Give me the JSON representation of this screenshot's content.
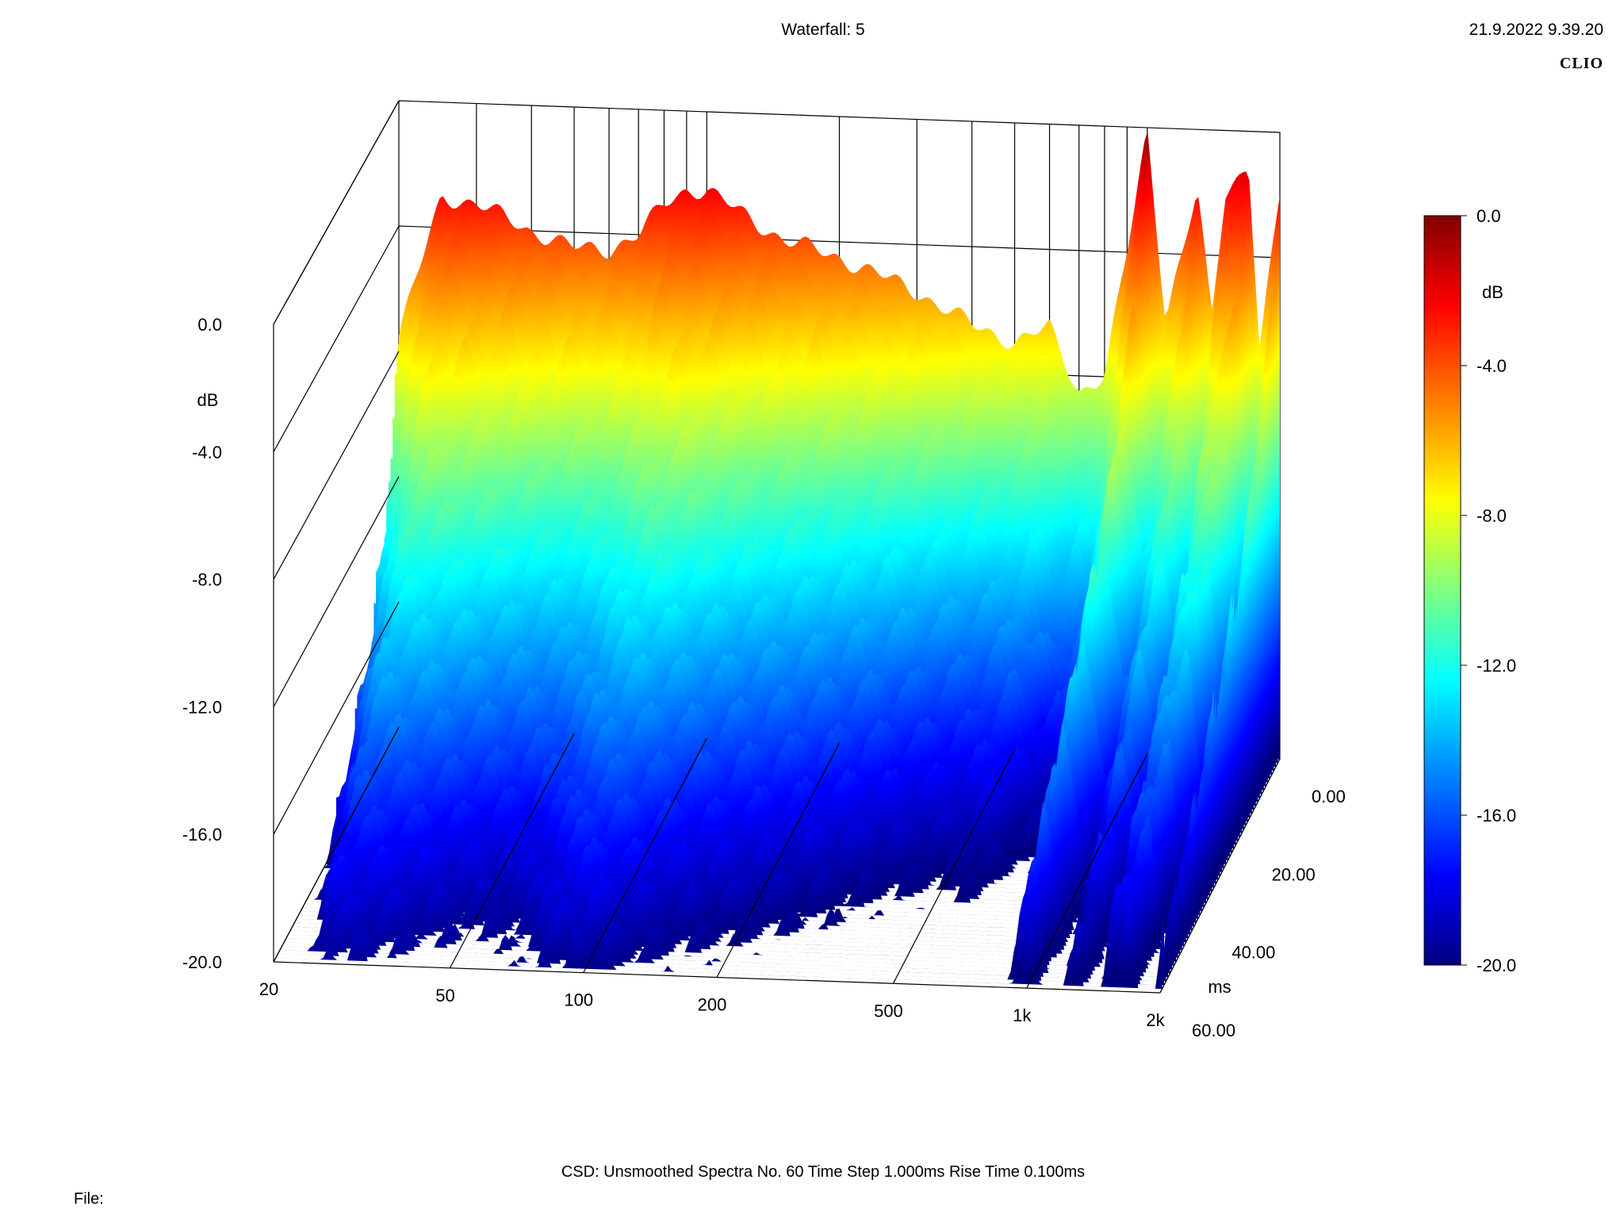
{
  "header": {
    "title": "Waterfall: 5",
    "timestamp": "21.9.2022 9.39.20",
    "brand": "CLIO"
  },
  "footer": {
    "info": "CSD:   Unsmoothed   Spectra No. 60   Time Step 1.000ms   Rise Time 0.100ms",
    "file_label": "File:"
  },
  "chart_data": {
    "type": "waterfall",
    "title": "Waterfall: 5",
    "frequency_axis": {
      "scale": "log",
      "range": [
        20,
        2000
      ],
      "tick_values": [
        20,
        50,
        100,
        200,
        500,
        1000,
        2000
      ],
      "tick_labels": [
        "20",
        "50",
        "100",
        "200",
        "500",
        "1k",
        "2k"
      ]
    },
    "level_axis": {
      "unit": "dB",
      "range": [
        -20,
        0
      ],
      "tick_values": [
        0,
        -4,
        -8,
        -12,
        -16,
        -20
      ],
      "tick_labels": [
        "0.0",
        "-4.0",
        "-8.0",
        "-12.0",
        "-16.0",
        "-20.0"
      ]
    },
    "time_axis": {
      "unit": "ms",
      "range": [
        0,
        60
      ],
      "tick_values": [
        0,
        20,
        40,
        60
      ],
      "tick_labels": [
        "0.00",
        "20.00",
        "40.00",
        "60.00"
      ]
    },
    "colorbar": {
      "unit": "dB",
      "range": [
        -20,
        0
      ],
      "tick_values": [
        0,
        -4,
        -8,
        -12,
        -16,
        -20
      ],
      "tick_labels": [
        "0.0",
        "-4.0",
        "-8.0",
        "-12.0",
        "-16.0",
        "-20.0"
      ],
      "colors": [
        "#7f0000",
        "#ff0000",
        "#ff8000",
        "#ffff00",
        "#80ff80",
        "#00ffff",
        "#0080ff",
        "#0000ff",
        "#00007f"
      ]
    },
    "spectra_count": 60,
    "time_step_ms": 1.0,
    "initial_spectrum": {
      "freq_hz": [
        20,
        25,
        30,
        40,
        50,
        60,
        70,
        80,
        90,
        100,
        120,
        150,
        200,
        300,
        400,
        500,
        600,
        700,
        800,
        900,
        1000,
        1100,
        1200,
        1300,
        1400,
        1500,
        1700,
        1800,
        2000
      ],
      "level_db": [
        -7.5,
        -3.0,
        -3.2,
        -4.0,
        -4.5,
        -4.5,
        -4.0,
        -3.0,
        -2.5,
        -2.5,
        -3.2,
        -4.0,
        -4.5,
        -5.5,
        -6.5,
        -7.0,
        -6.5,
        -8.5,
        -8.0,
        -4.0,
        0.0,
        -6.0,
        -4.0,
        -2.0,
        -6.0,
        -2.0,
        -1.0,
        -7.0,
        -2.0
      ]
    },
    "decay_ms": [
      0,
      5,
      10,
      20,
      30,
      40,
      60
    ],
    "decay_level_offset_db": [
      0,
      -4,
      -7,
      -10,
      -12,
      -14,
      -17
    ]
  }
}
